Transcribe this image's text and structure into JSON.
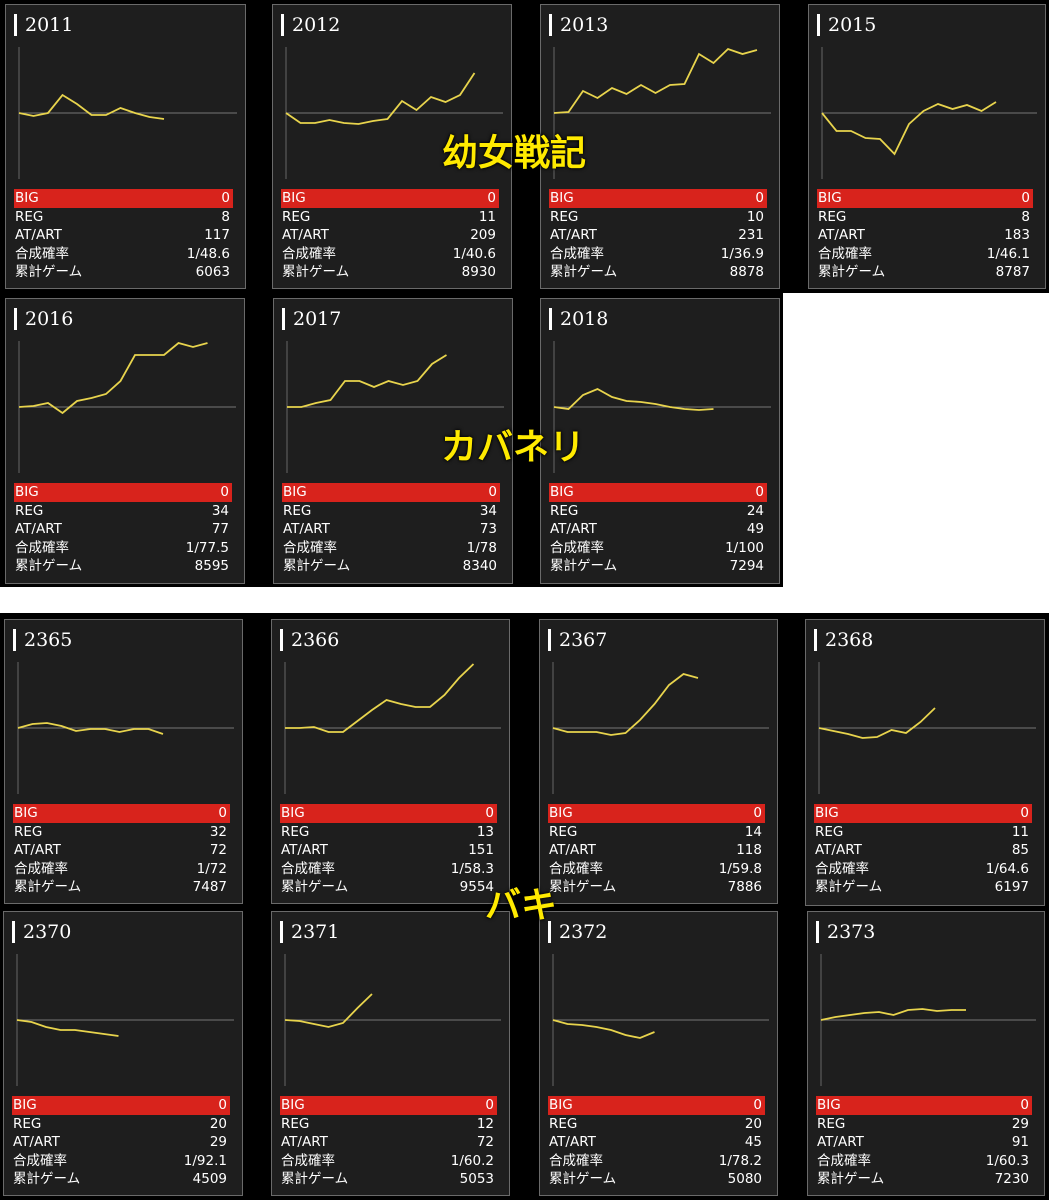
{
  "overlays": {
    "group1": "幼女戦記",
    "group2": "カバネリ",
    "group3": "バキ"
  },
  "colors": {
    "background": "#ffffff",
    "card_background": "#1e1e1e",
    "card_border": "#6a6a6a",
    "big_row": "#d8231c",
    "line": "#e8d44d",
    "overlay_text": "#ffea00"
  },
  "labels": {
    "big": "BIG",
    "reg": "REG",
    "atart": "AT/ART",
    "rate": "合成確率",
    "games": "累計ゲーム"
  },
  "cards": [
    {
      "id": "2011",
      "big": "0",
      "reg": "8",
      "atart": "117",
      "rate": "1/48.6",
      "games": "6063",
      "trend": [
        0,
        -3,
        0,
        18,
        9,
        -2,
        -2,
        5,
        0,
        -4,
        -6
      ]
    },
    {
      "id": "2012",
      "big": "0",
      "reg": "11",
      "atart": "209",
      "rate": "1/40.6",
      "games": "8930",
      "trend": [
        0,
        -10,
        -10,
        -7,
        -10,
        -11,
        -8,
        -6,
        12,
        3,
        16,
        11,
        18,
        40
      ]
    },
    {
      "id": "2013",
      "big": "0",
      "reg": "10",
      "atart": "231",
      "rate": "1/36.9",
      "games": "8878",
      "trend": [
        0,
        1,
        22,
        15,
        25,
        19,
        28,
        20,
        28,
        29,
        59,
        50,
        64,
        59,
        63
      ]
    },
    {
      "id": "2015",
      "big": "0",
      "reg": "8",
      "atart": "183",
      "rate": "1/46.1",
      "games": "8787",
      "trend": [
        0,
        -18,
        -18,
        -25,
        -26,
        -41,
        -11,
        2,
        9,
        4,
        8,
        2,
        11
      ]
    },
    {
      "id": "2016",
      "big": "0",
      "reg": "34",
      "atart": "77",
      "rate": "1/77.5",
      "games": "8595",
      "trend": [
        0,
        1,
        4,
        -6,
        6,
        9,
        13,
        26,
        52,
        52,
        52,
        64,
        60,
        64
      ]
    },
    {
      "id": "2017",
      "big": "0",
      "reg": "34",
      "atart": "73",
      "rate": "1/78",
      "games": "8340",
      "trend": [
        0,
        0,
        4,
        7,
        26,
        26,
        20,
        26,
        22,
        26,
        43,
        52
      ]
    },
    {
      "id": "2018",
      "big": "0",
      "reg": "24",
      "atart": "49",
      "rate": "1/100",
      "games": "7294",
      "trend": [
        0,
        -2,
        12,
        18,
        10,
        6,
        5,
        3,
        0,
        -2,
        -3,
        -2
      ]
    },
    {
      "id": "2365",
      "big": "0",
      "reg": "32",
      "atart": "72",
      "rate": "1/72",
      "games": "7487",
      "trend": [
        0,
        4,
        5,
        2,
        -3,
        -1,
        -1,
        -4,
        -1,
        -1,
        -6
      ]
    },
    {
      "id": "2366",
      "big": "0",
      "reg": "13",
      "atart": "151",
      "rate": "1/58.3",
      "games": "9554",
      "trend": [
        0,
        0,
        1,
        -4,
        -4,
        7,
        18,
        28,
        24,
        21,
        21,
        33,
        50,
        64
      ]
    },
    {
      "id": "2367",
      "big": "0",
      "reg": "14",
      "atart": "118",
      "rate": "1/59.8",
      "games": "7886",
      "trend": [
        0,
        -4,
        -4,
        -4,
        -7,
        -5,
        8,
        24,
        43,
        54,
        50
      ]
    },
    {
      "id": "2368",
      "big": "0",
      "reg": "11",
      "atart": "85",
      "rate": "1/64.6",
      "games": "6197",
      "trend": [
        0,
        -3,
        -6,
        -10,
        -9,
        -2,
        -5,
        6,
        20
      ]
    },
    {
      "id": "2370",
      "big": "0",
      "reg": "20",
      "atart": "29",
      "rate": "1/92.1",
      "games": "4509",
      "trend": [
        0,
        -2,
        -7,
        -10,
        -10,
        -12,
        -14,
        -16
      ]
    },
    {
      "id": "2371",
      "big": "0",
      "reg": "12",
      "atart": "72",
      "rate": "1/60.2",
      "games": "5053",
      "trend": [
        0,
        -1,
        -4,
        -7,
        -3,
        12,
        26
      ]
    },
    {
      "id": "2372",
      "big": "0",
      "reg": "20",
      "atart": "45",
      "rate": "1/78.2",
      "games": "5080",
      "trend": [
        0,
        -4,
        -5,
        -7,
        -10,
        -15,
        -18,
        -12
      ]
    },
    {
      "id": "2373",
      "big": "0",
      "reg": "29",
      "atart": "91",
      "rate": "1/60.3",
      "games": "7230",
      "trend": [
        0,
        3,
        5,
        7,
        8,
        5,
        10,
        11,
        9,
        10,
        10
      ]
    }
  ]
}
